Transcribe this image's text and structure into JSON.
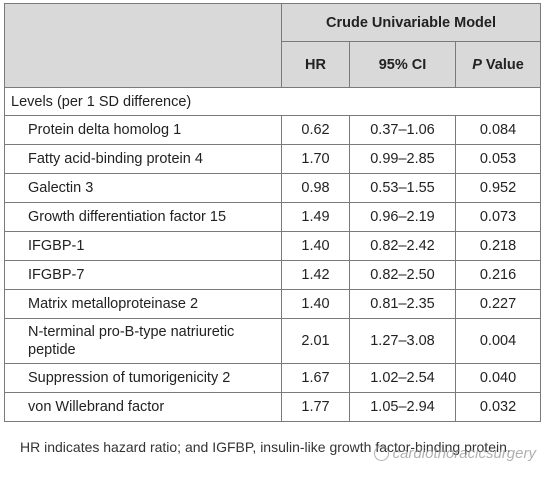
{
  "table": {
    "model_header": "Crude Univariable Model",
    "columns": {
      "hr": "HR",
      "ci": "95% CI",
      "p_italic": "P",
      "p_rest": " Value"
    },
    "section_label": "Levels (per 1 SD difference)",
    "rows": [
      {
        "name": "Protein delta homolog 1",
        "hr": "0.62",
        "ci": "0.37–1.06",
        "p": "0.084"
      },
      {
        "name": "Fatty acid-binding protein 4",
        "hr": "1.70",
        "ci": "0.99–2.85",
        "p": "0.053"
      },
      {
        "name": "Galectin 3",
        "hr": "0.98",
        "ci": "0.53–1.55",
        "p": "0.952"
      },
      {
        "name": "Growth differentiation factor 15",
        "hr": "1.49",
        "ci": "0.96–2.19",
        "p": "0.073"
      },
      {
        "name": "IFGBP-1",
        "hr": "1.40",
        "ci": "0.82–2.42",
        "p": "0.218"
      },
      {
        "name": "IFGBP-7",
        "hr": "1.42",
        "ci": "0.82–2.50",
        "p": "0.216"
      },
      {
        "name": "Matrix metalloproteinase 2",
        "hr": "1.40",
        "ci": "0.81–2.35",
        "p": "0.227"
      },
      {
        "name": "N-terminal pro-B-type natriuretic peptide",
        "hr": "2.01",
        "ci": "1.27–3.08",
        "p": "0.004"
      },
      {
        "name": "Suppression of tumorigenicity 2",
        "hr": "1.67",
        "ci": "1.02–2.54",
        "p": "0.040"
      },
      {
        "name": "von Willebrand factor",
        "hr": "1.77",
        "ci": "1.05–2.94",
        "p": "0.032"
      }
    ]
  },
  "footnote": "HR indicates hazard ratio; and IGFBP, insulin-like growth factor-binding protein.",
  "watermark": "cardiothoracicsurgery",
  "icons": {
    "watermark": "wechat-logo-icon"
  }
}
